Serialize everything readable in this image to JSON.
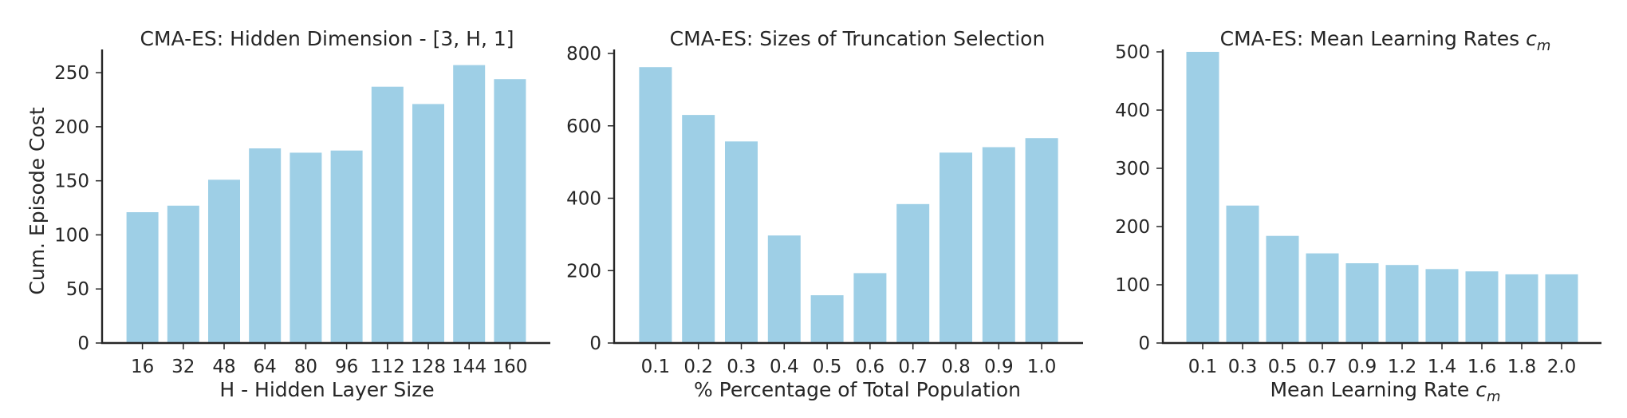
{
  "chart_data": [
    {
      "type": "bar",
      "title": "CMA-ES: Hidden Dimension - [3, H, 1]",
      "xlabel": "H - Hidden Layer Size",
      "ylabel": "Cum. Episode Cost",
      "categories": [
        "16",
        "32",
        "48",
        "64",
        "80",
        "96",
        "112",
        "128",
        "144",
        "160"
      ],
      "values": [
        121,
        127,
        151,
        180,
        176,
        178,
        237,
        221,
        257,
        244
      ],
      "ylim": [
        0,
        270
      ],
      "yticks": [
        0,
        50,
        100,
        150,
        200,
        250
      ],
      "color": "#9ecfe6",
      "grid": false
    },
    {
      "type": "bar",
      "title": "CMA-ES: Sizes of Truncation Selection",
      "xlabel": "% Percentage of Total Population",
      "ylabel": "",
      "categories": [
        "0.1",
        "0.2",
        "0.3",
        "0.4",
        "0.5",
        "0.6",
        "0.7",
        "0.8",
        "0.9",
        "1.0"
      ],
      "values": [
        762,
        630,
        557,
        297,
        132,
        193,
        384,
        526,
        541,
        566
      ],
      "ylim": [
        0,
        800
      ],
      "yticks": [
        0,
        200,
        400,
        600,
        800
      ],
      "color": "#9ecfe6",
      "grid": false
    },
    {
      "type": "bar",
      "title": "CMA-ES: Mean Learning Rates ",
      "title_math": "c",
      "title_math_sub": "m",
      "xlabel": "Mean Learning Rate ",
      "xlabel_math": "c",
      "xlabel_math_sub": "m",
      "ylabel": "",
      "categories": [
        "0.1",
        "0.3",
        "0.5",
        "0.7",
        "0.9",
        "1.2",
        "1.4",
        "1.6",
        "1.8",
        "2.0"
      ],
      "values": [
        500,
        236,
        184,
        154,
        137,
        134,
        127,
        123,
        118,
        118
      ],
      "ylim": [
        0,
        500
      ],
      "yticks": [
        0,
        100,
        200,
        300,
        400,
        500
      ],
      "color": "#9ecfe6",
      "grid": false
    }
  ]
}
